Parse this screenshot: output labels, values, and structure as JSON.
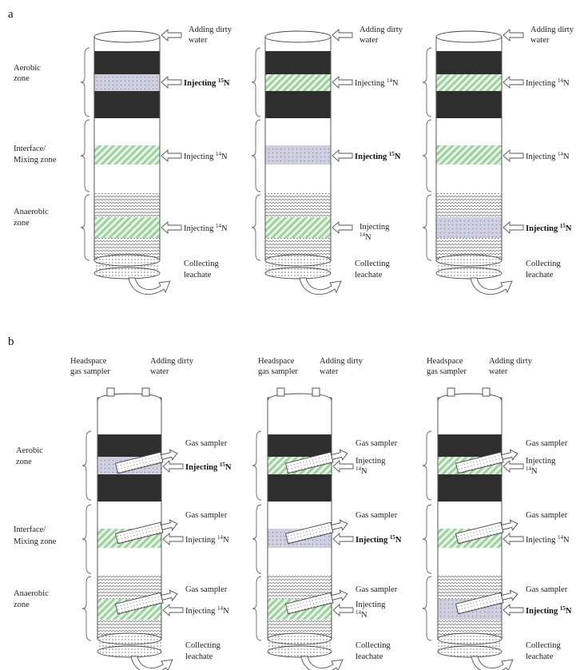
{
  "panels": {
    "a": {
      "label": "a",
      "zones": {
        "aerobic": [
          "Aerobic",
          "zone"
        ],
        "interface": [
          "Interface/",
          "Mixing zone"
        ],
        "anaerobic": [
          "Anaerobic",
          "zone"
        ]
      },
      "columns": [
        {
          "top_label": [
            "Adding  dirty",
            "water"
          ],
          "bottom_label": [
            "Collecting",
            "leachate"
          ],
          "injections": [
            {
              "prefix": "Injecting ",
              "mass": "15",
              "element": "N",
              "bold": true,
              "lines": 1
            },
            {
              "prefix": "Injecting  ",
              "mass": "14",
              "element": "N",
              "bold": false,
              "lines": 1
            },
            {
              "prefix": "Injecting  ",
              "mass": "14",
              "element": "N",
              "bold": false,
              "lines": 1
            }
          ]
        },
        {
          "top_label": [
            "Adding  dirty",
            "water"
          ],
          "bottom_label": [
            "Collecting",
            "leachate"
          ],
          "injections": [
            {
              "prefix": "Injecting  ",
              "mass": "14",
              "element": "N",
              "bold": false,
              "lines": 1
            },
            {
              "prefix": "Injecting ",
              "mass": "15",
              "element": "N",
              "bold": true,
              "lines": 1
            },
            {
              "prefix": "Injecting",
              "mass": "14",
              "element": "N",
              "bold": false,
              "lines": 2
            }
          ]
        },
        {
          "top_label": [
            "Adding  dirty",
            "water"
          ],
          "bottom_label": [
            "Collecting",
            "leachate"
          ],
          "injections": [
            {
              "prefix": "Injecting  ",
              "mass": "14",
              "element": "N",
              "bold": false,
              "lines": 1
            },
            {
              "prefix": "Injecting  ",
              "mass": "14",
              "element": "N",
              "bold": false,
              "lines": 1
            },
            {
              "prefix": "Injecting ",
              "mass": "15",
              "element": "N",
              "bold": true,
              "lines": 1
            }
          ]
        }
      ]
    },
    "b": {
      "label": "b",
      "zones": {
        "aerobic": [
          "Aerobic",
          "zone"
        ],
        "interface": [
          "Interface/",
          "Mixing zone"
        ],
        "anaerobic": [
          "Anaerobic",
          "zone"
        ]
      },
      "headspace_label": [
        "Headspace",
        "gas sampler"
      ],
      "gas_sampler_label": "Gas sampler",
      "columns": [
        {
          "top_label": [
            "Adding  dirty",
            "water"
          ],
          "bottom_label": [
            "Collecting",
            "leachate"
          ],
          "injections": [
            {
              "prefix": "Injecting ",
              "mass": "15",
              "element": "N",
              "bold": true,
              "lines": 1
            },
            {
              "prefix": "Injecting  ",
              "mass": "14",
              "element": "N",
              "bold": false,
              "lines": 1
            },
            {
              "prefix": "Injecting  ",
              "mass": "14",
              "element": "N",
              "bold": false,
              "lines": 1
            }
          ]
        },
        {
          "top_label": [
            "Adding  dirty",
            "water"
          ],
          "bottom_label": [
            "Collecting",
            "leachate"
          ],
          "injections": [
            {
              "prefix": "Injecting",
              "mass": "14",
              "element": "N",
              "bold": false,
              "lines": 2
            },
            {
              "prefix": "Injecting ",
              "mass": "15",
              "element": "N",
              "bold": true,
              "lines": 1
            },
            {
              "prefix": "Injecting",
              "mass": "14",
              "element": "N",
              "bold": false,
              "lines": 2
            }
          ]
        },
        {
          "top_label": [
            "Adding  dirty",
            "water"
          ],
          "bottom_label": [
            "Collecting",
            "leachate"
          ],
          "injections": [
            {
              "prefix": "Injecting",
              "mass": "14",
              "element": "N",
              "bold": false,
              "lines": 2
            },
            {
              "prefix": "Injecting  ",
              "mass": "14",
              "element": "N",
              "bold": false,
              "lines": 1
            },
            {
              "prefix": "Injecting ",
              "mass": "15",
              "element": "N",
              "bold": true,
              "lines": 1
            }
          ]
        }
      ]
    }
  },
  "colors": {
    "dark_layer": "#2e2e2e",
    "n15_fill": "#c9c9dc",
    "n14_stripe": "#9dcf9d",
    "outline": "#444444"
  }
}
